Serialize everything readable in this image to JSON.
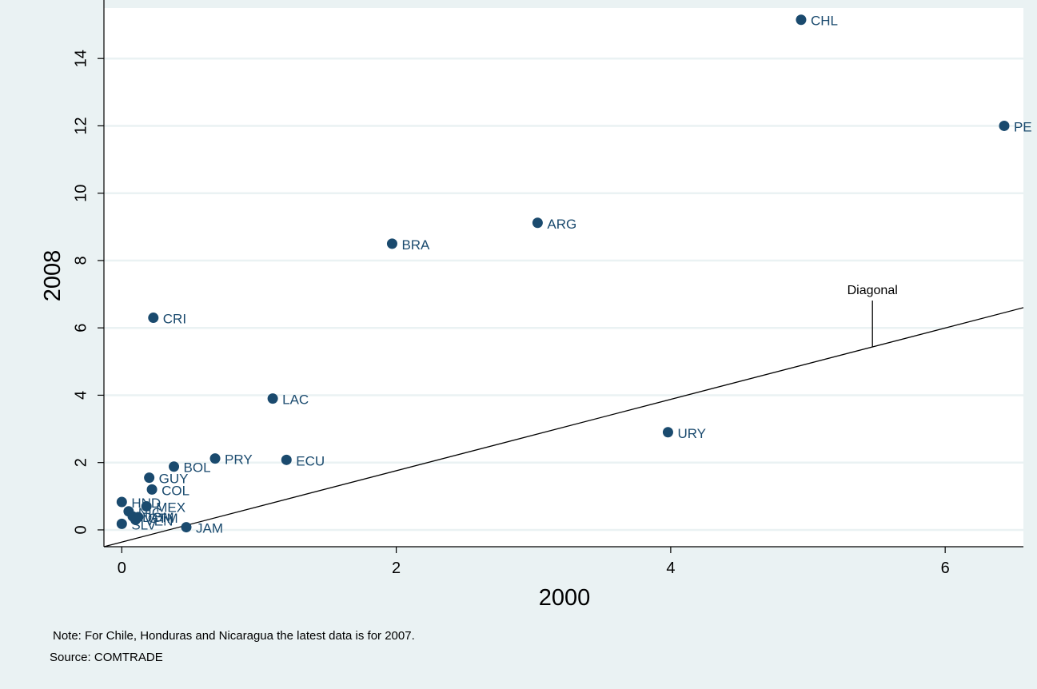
{
  "chart_data": {
    "type": "scatter",
    "title": "",
    "xlabel": "2000",
    "ylabel": "2008",
    "xlim": [
      -0.13,
      6.57
    ],
    "ylim": [
      -0.5,
      15.5
    ],
    "xticks": [
      0,
      2,
      4,
      6
    ],
    "yticks": [
      0,
      2,
      4,
      6,
      8,
      10,
      12,
      14
    ],
    "grid": "horizontal",
    "marker_color": "#1a4a6e",
    "label_color": "#1a4a6e",
    "points": [
      {
        "label": "CHL",
        "x": 4.95,
        "y": 15.15
      },
      {
        "label": "PE",
        "x": 6.43,
        "y": 12.0
      },
      {
        "label": "ARG",
        "x": 3.03,
        "y": 9.12
      },
      {
        "label": "BRA",
        "x": 1.97,
        "y": 8.5
      },
      {
        "label": "CRI",
        "x": 0.23,
        "y": 6.3
      },
      {
        "label": "LAC",
        "x": 1.1,
        "y": 3.9
      },
      {
        "label": "URY",
        "x": 3.98,
        "y": 2.9
      },
      {
        "label": "PRY",
        "x": 0.68,
        "y": 2.12
      },
      {
        "label": "ECU",
        "x": 1.2,
        "y": 2.08
      },
      {
        "label": "BOL",
        "x": 0.38,
        "y": 1.88
      },
      {
        "label": "GUY",
        "x": 0.2,
        "y": 1.55
      },
      {
        "label": "COL",
        "x": 0.22,
        "y": 1.2
      },
      {
        "label": "HND",
        "x": 0.0,
        "y": 0.83
      },
      {
        "label": "MEX",
        "x": 0.18,
        "y": 0.7
      },
      {
        "label": "NIC",
        "x": 0.05,
        "y": 0.55
      },
      {
        "label": "DOM",
        "x": 0.08,
        "y": 0.4
      },
      {
        "label": "GTM",
        "x": 0.12,
        "y": 0.38
      },
      {
        "label": "VEN",
        "x": 0.1,
        "y": 0.3
      },
      {
        "label": "SLV",
        "x": 0.0,
        "y": 0.18
      },
      {
        "label": "JAM",
        "x": 0.47,
        "y": 0.08
      }
    ],
    "diagonal": {
      "label": "Diagonal",
      "from": [
        -0.13,
        -0.5
      ],
      "to": [
        6.57,
        6.6
      ],
      "label_x": 5.47
    }
  },
  "notes": {
    "note": "Note: For Chile, Honduras and Nicaragua the latest data is for 2007.",
    "source": "Source: COMTRADE"
  }
}
